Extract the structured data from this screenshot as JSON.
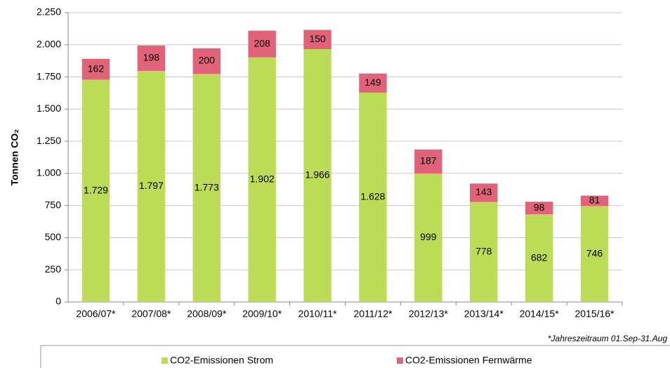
{
  "chart_data": {
    "type": "stacked_bar",
    "y_label": "Tonnen CO₂",
    "footnote": "*Jahreszeitraum 01.Sep-31.Aug",
    "categories": [
      "2006/07*",
      "2007/08*",
      "2008/09*",
      "2009/10*",
      "2010/11*",
      "2011/12*",
      "2012/13*",
      "2013/14*",
      "2014/15*",
      "2015/16*"
    ],
    "series": [
      {
        "name": "CO2-Emissionen Strom",
        "color": "#bcdc58",
        "values": [
          1729,
          1797,
          1773,
          1902,
          1966,
          1628,
          999,
          778,
          682,
          746
        ],
        "value_labels": [
          "1.729",
          "1.797",
          "1.773",
          "1.902",
          "1.966",
          "1.628",
          "999",
          "778",
          "682",
          "746"
        ]
      },
      {
        "name": "CO2-Emissionen Fernwärme",
        "color": "#e0637a",
        "values": [
          162,
          198,
          200,
          208,
          150,
          149,
          187,
          143,
          98,
          81
        ]
      }
    ],
    "ylim": [
      0,
      2250
    ],
    "yticks": [
      0,
      250,
      500,
      750,
      {
        "value": 1000,
        "label": "1.000"
      },
      {
        "value": 1250,
        "label": "1.250"
      },
      {
        "value": 1500,
        "label": "1.500"
      },
      {
        "value": 1750,
        "label": "1.750"
      },
      {
        "value": 2000,
        "label": "2.000"
      },
      {
        "value": 2250,
        "label": "2.250"
      }
    ],
    "grid": true,
    "legend": "bottom"
  }
}
